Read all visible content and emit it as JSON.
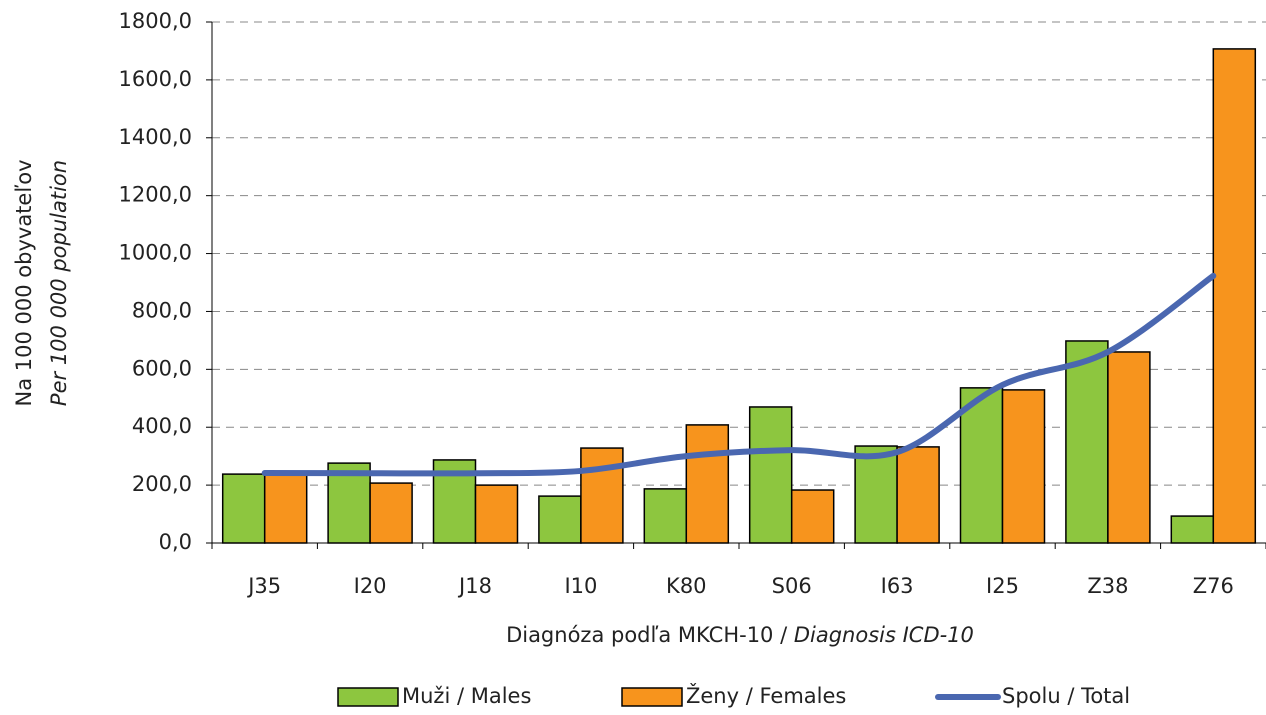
{
  "chart_data": {
    "type": "bar",
    "ylabel": [
      "Na 100 000 obyvateľov",
      "Per 100 000 population"
    ],
    "xlabel": [
      "Diagnóza podľa MKCH-10 / ",
      "Diagnosis ICD-10"
    ],
    "categories": [
      "J35",
      "I20",
      "J18",
      "I10",
      "K80",
      "S06",
      "I63",
      "I25",
      "Z38",
      "Z76"
    ],
    "series": [
      {
        "name": "Muži / Males",
        "color": "#8dc63f",
        "kind": "bar",
        "values": [
          238,
          276,
          287,
          162,
          187,
          470,
          335,
          536,
          698,
          93
        ]
      },
      {
        "name": "Ženy / Females",
        "color": "#f7941d",
        "kind": "bar",
        "values": [
          238,
          207,
          200,
          328,
          408,
          183,
          332,
          529,
          660,
          1707
        ]
      },
      {
        "name": "Spolu / Total",
        "color": "#4a67b0",
        "kind": "line",
        "values": [
          242,
          241,
          241,
          249,
          300,
          321,
          314,
          546,
          660,
          923
        ]
      }
    ],
    "ylim": [
      0,
      1800
    ],
    "yticks": [
      {
        "value": 0,
        "label": "0,0"
      },
      {
        "value": 200,
        "label": "200,0"
      },
      {
        "value": 400,
        "label": "400,0"
      },
      {
        "value": 600,
        "label": "600,0"
      },
      {
        "value": 800,
        "label": "800,0"
      },
      {
        "value": 1000,
        "label": "1000,0"
      },
      {
        "value": 1200,
        "label": "1200,0"
      },
      {
        "value": 1400,
        "label": "1400,0"
      },
      {
        "value": 1600,
        "label": "1600,0"
      },
      {
        "value": 1800,
        "label": "1800,0"
      }
    ],
    "grid": true,
    "legend": "bottom"
  }
}
